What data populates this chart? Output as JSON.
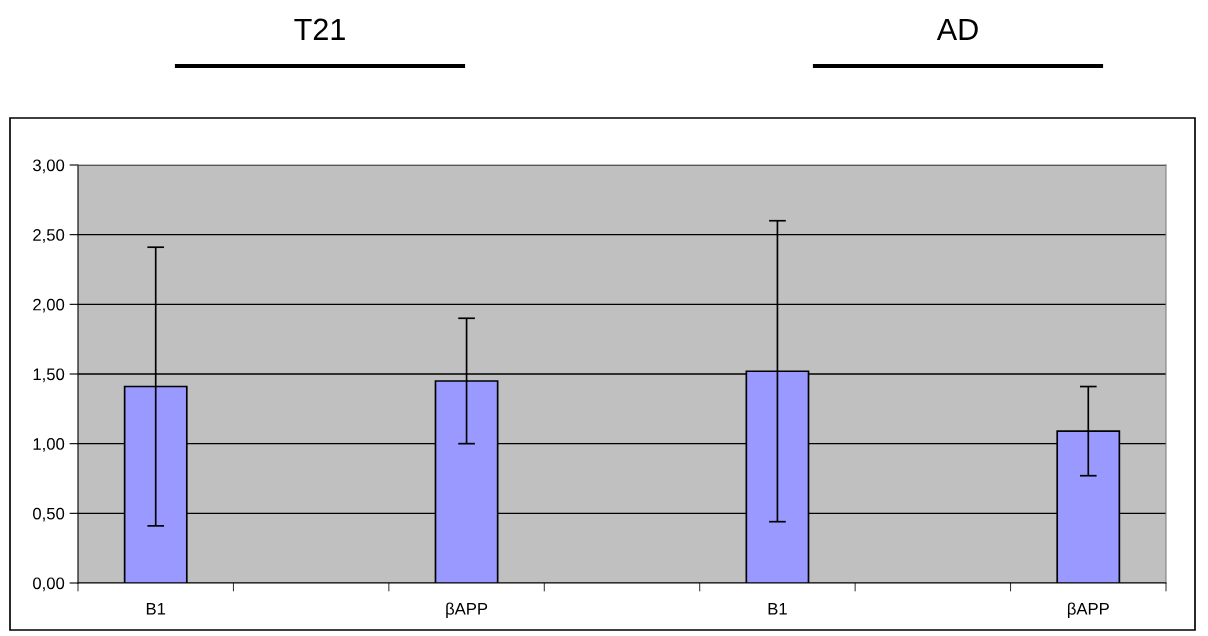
{
  "chart_data": {
    "type": "bar",
    "categories": [
      "B1",
      null,
      "βAPP",
      null,
      "B1",
      null,
      "βAPP"
    ],
    "values": [
      1.41,
      null,
      1.45,
      null,
      1.52,
      null,
      1.09
    ],
    "errors": [
      1.0,
      null,
      0.45,
      null,
      1.08,
      null,
      0.32
    ],
    "color": "#9999ff",
    "ylim": [
      0,
      3
    ],
    "yticks": [
      {
        "value": 0,
        "label": "0,00"
      },
      {
        "value": 0.5,
        "label": "0,50"
      },
      {
        "value": 1,
        "label": "1,00"
      },
      {
        "value": 1.5,
        "label": "1,50"
      },
      {
        "value": 2,
        "label": "2,00"
      },
      {
        "value": 2.5,
        "label": "2,50"
      },
      {
        "value": 3,
        "label": "3,00"
      }
    ],
    "grid": "y",
    "annotations": [
      "T21",
      "AD"
    ]
  }
}
